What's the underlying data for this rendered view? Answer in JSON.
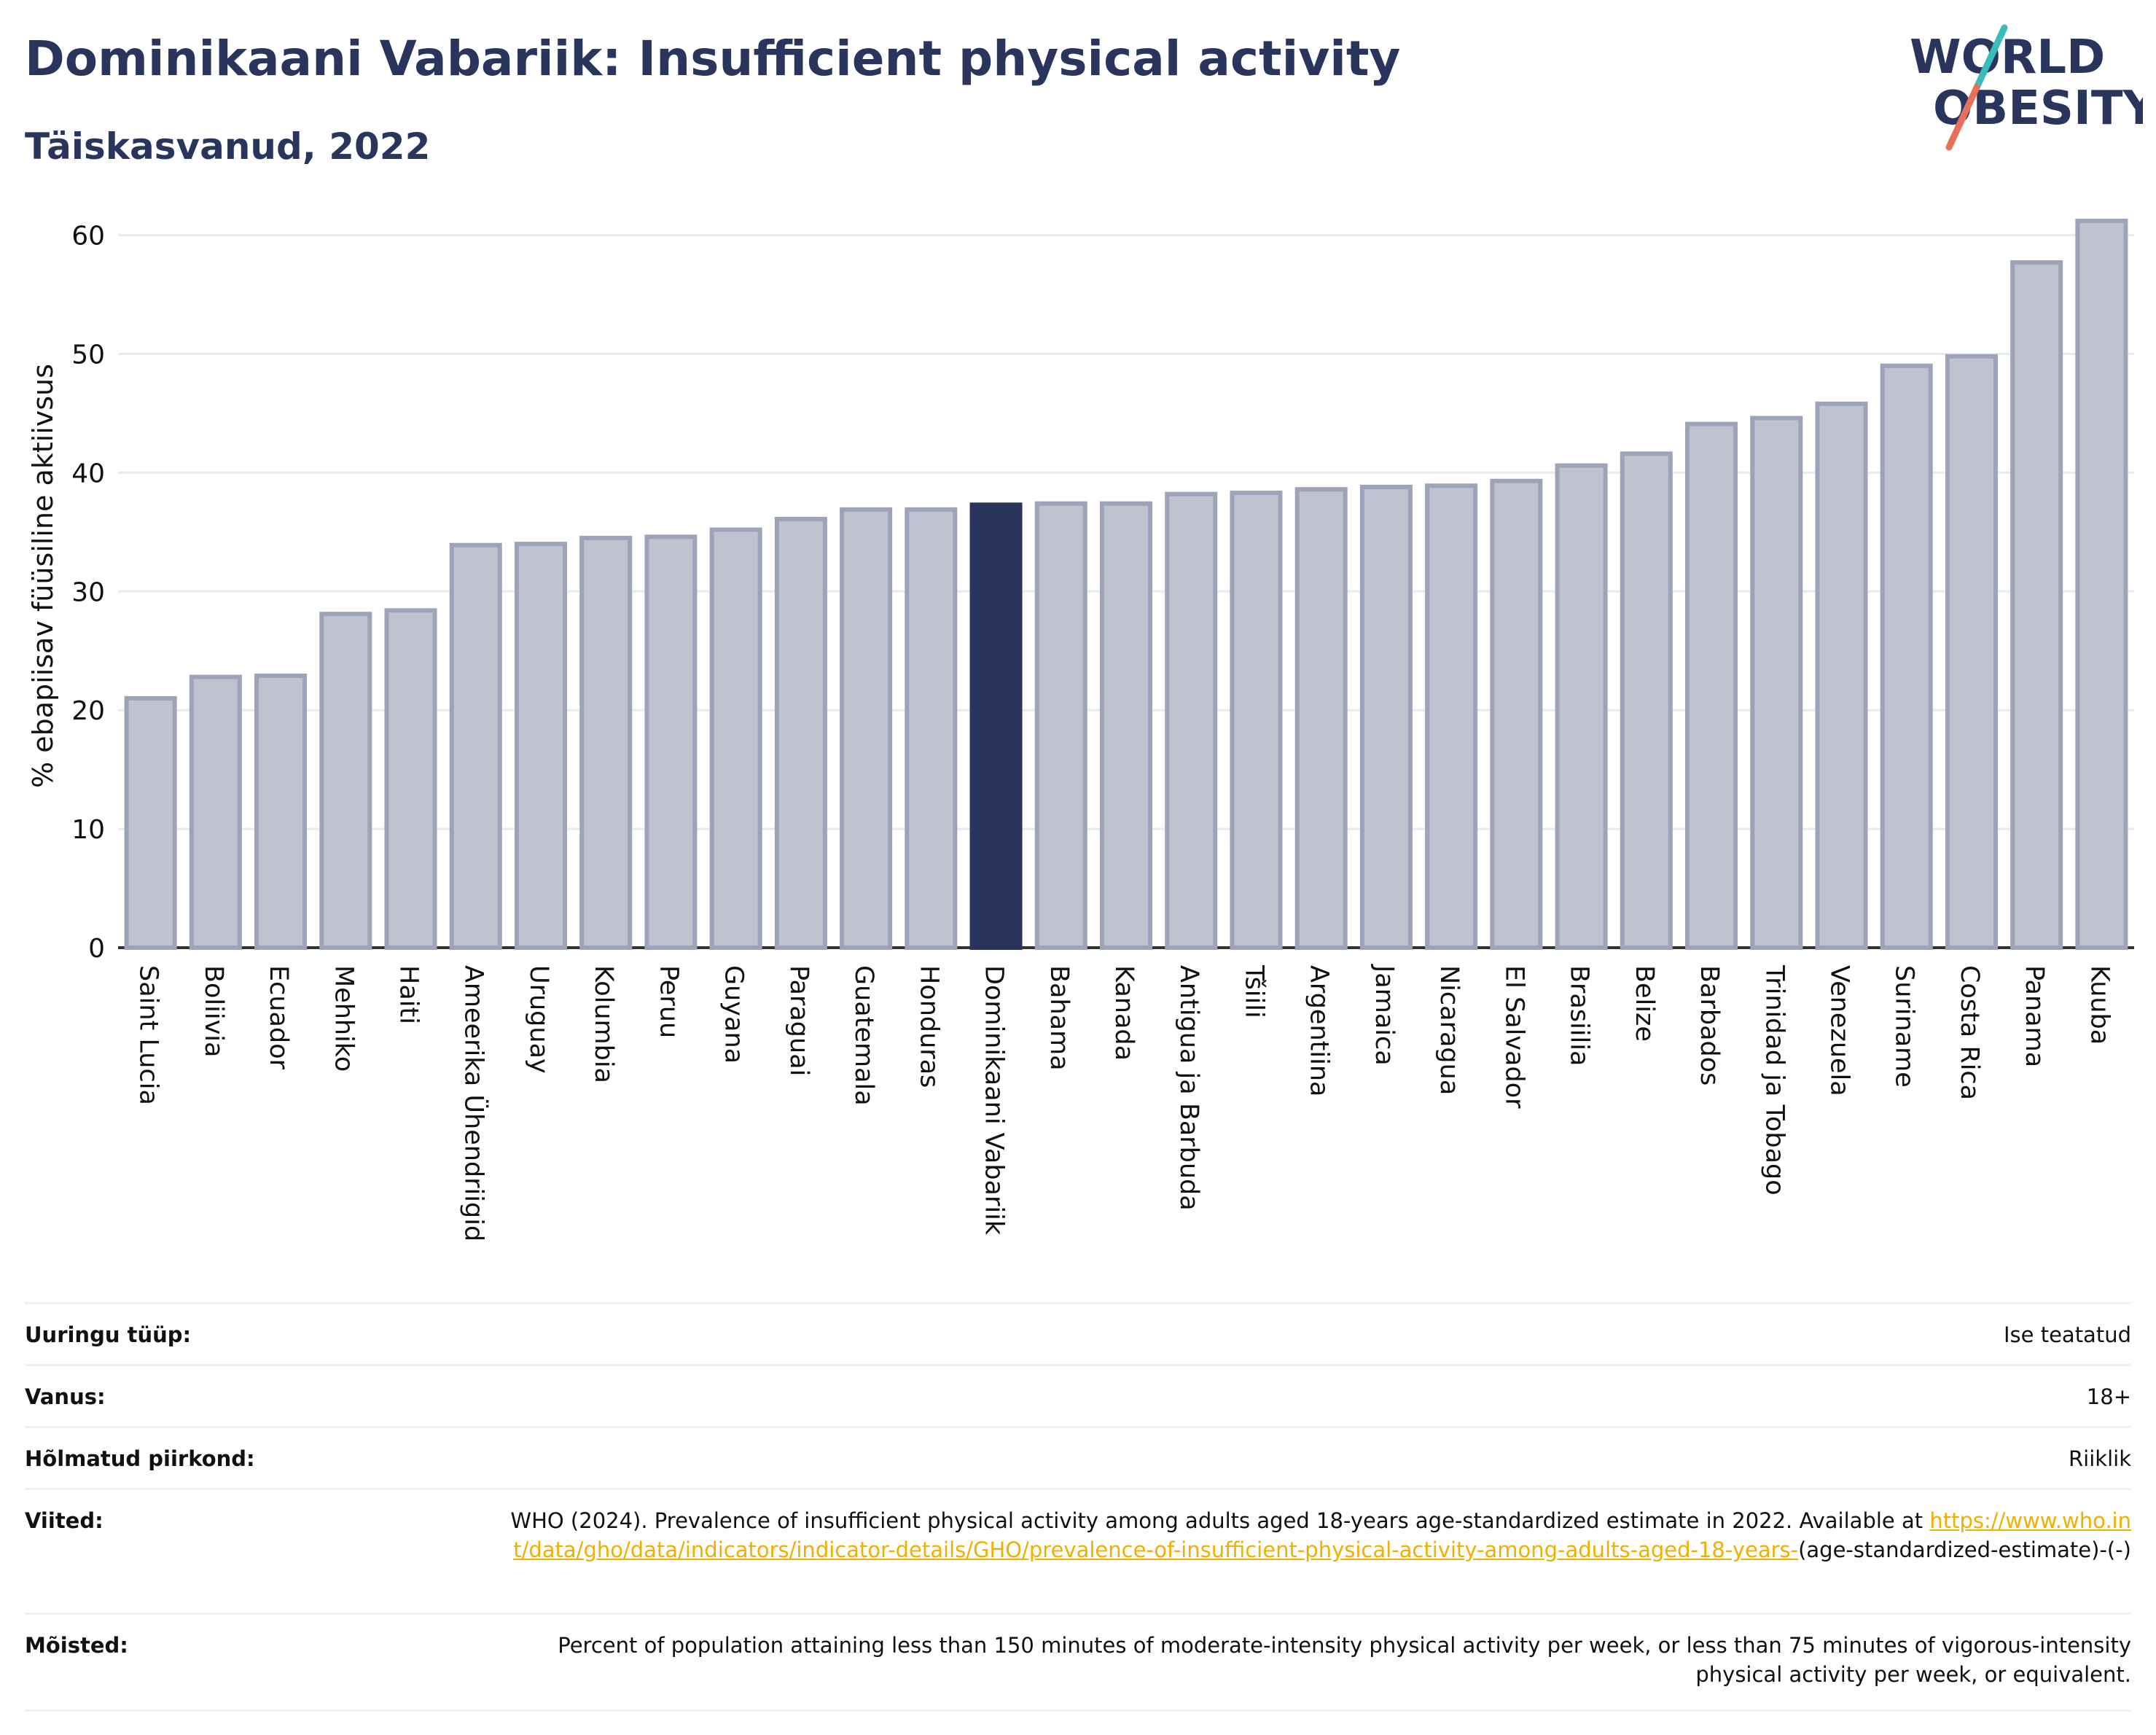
{
  "header": {
    "title": "Dominikaani Vabariik: Insufficient physical activity",
    "subtitle": "Täiskasvanud, 2022"
  },
  "logo": {
    "line1": "WORLD",
    "line2": "OBESITY",
    "colors": {
      "text": "#2a355e",
      "slash_top": "#3bbcb8",
      "slash_bottom": "#e8705a"
    }
  },
  "colors": {
    "bar": "#bfc2cf",
    "bar_edge": "#9da3b9",
    "highlight": "#2a355e",
    "grid": "#e9eaf0",
    "axis": "#333333"
  },
  "chart_data": {
    "type": "bar",
    "ylabel": "% ebapiisav füüsiline aktiivsus",
    "ylim": [
      0,
      62
    ],
    "yticks": [
      0,
      10,
      20,
      30,
      40,
      50,
      60
    ],
    "grid": true,
    "highlight": "Dominikaani Vabariik",
    "categories": [
      "Saint Lucia",
      "Boliivia",
      "Ecuador",
      "Mehhiko",
      "Haiti",
      "Ameerika Ühendriigid",
      "Uruguay",
      "Kolumbia",
      "Peruu",
      "Guyana",
      "Paraguai",
      "Guatemala",
      "Honduras",
      "Dominikaani Vabariik",
      "Bahama",
      "Kanada",
      "Antigua ja Barbuda",
      "Tšiili",
      "Argentiina",
      "Jamaica",
      "Nicaragua",
      "El Salvador",
      "Brasiilia",
      "Belize",
      "Barbados",
      "Trinidad ja Tobago",
      "Venezuela",
      "Suriname",
      "Costa Rica",
      "Panama",
      "Kuuba"
    ],
    "values": [
      21.0,
      22.8,
      22.9,
      28.1,
      28.4,
      33.9,
      34.0,
      34.5,
      34.6,
      35.2,
      36.1,
      36.9,
      36.9,
      37.3,
      37.4,
      37.4,
      38.2,
      38.3,
      38.6,
      38.8,
      38.9,
      39.3,
      40.6,
      41.6,
      44.1,
      44.6,
      45.8,
      49.0,
      49.8,
      57.7,
      61.2
    ]
  },
  "meta": [
    {
      "label": "Uuringu tüüp:",
      "value": "Ise teatatud"
    },
    {
      "label": "Vanus:",
      "value": "18+"
    },
    {
      "label": "Hõlmatud piirkond:",
      "value": "Riiklik"
    },
    {
      "label": "Viited:",
      "value": "WHO (2024). Prevalence of insufficient physical activity among adults aged 18-years age-standardized estimate in 2022. Available at",
      "link": "https://www.who.int/data/gho/data/indicators/indicator-details/GHO/prevalence-of-insufficient-physical-activity-among-adults-aged-18-years-",
      "suffix": "(age-standardized-estimate)-(-)"
    },
    {
      "label": "Mõisted:",
      "value": "Percent of population attaining less than 150 minutes of moderate-intensity physical activity per week, or less than 75 minutes of vigorous-intensity physical activity per week, or equivalent."
    }
  ]
}
